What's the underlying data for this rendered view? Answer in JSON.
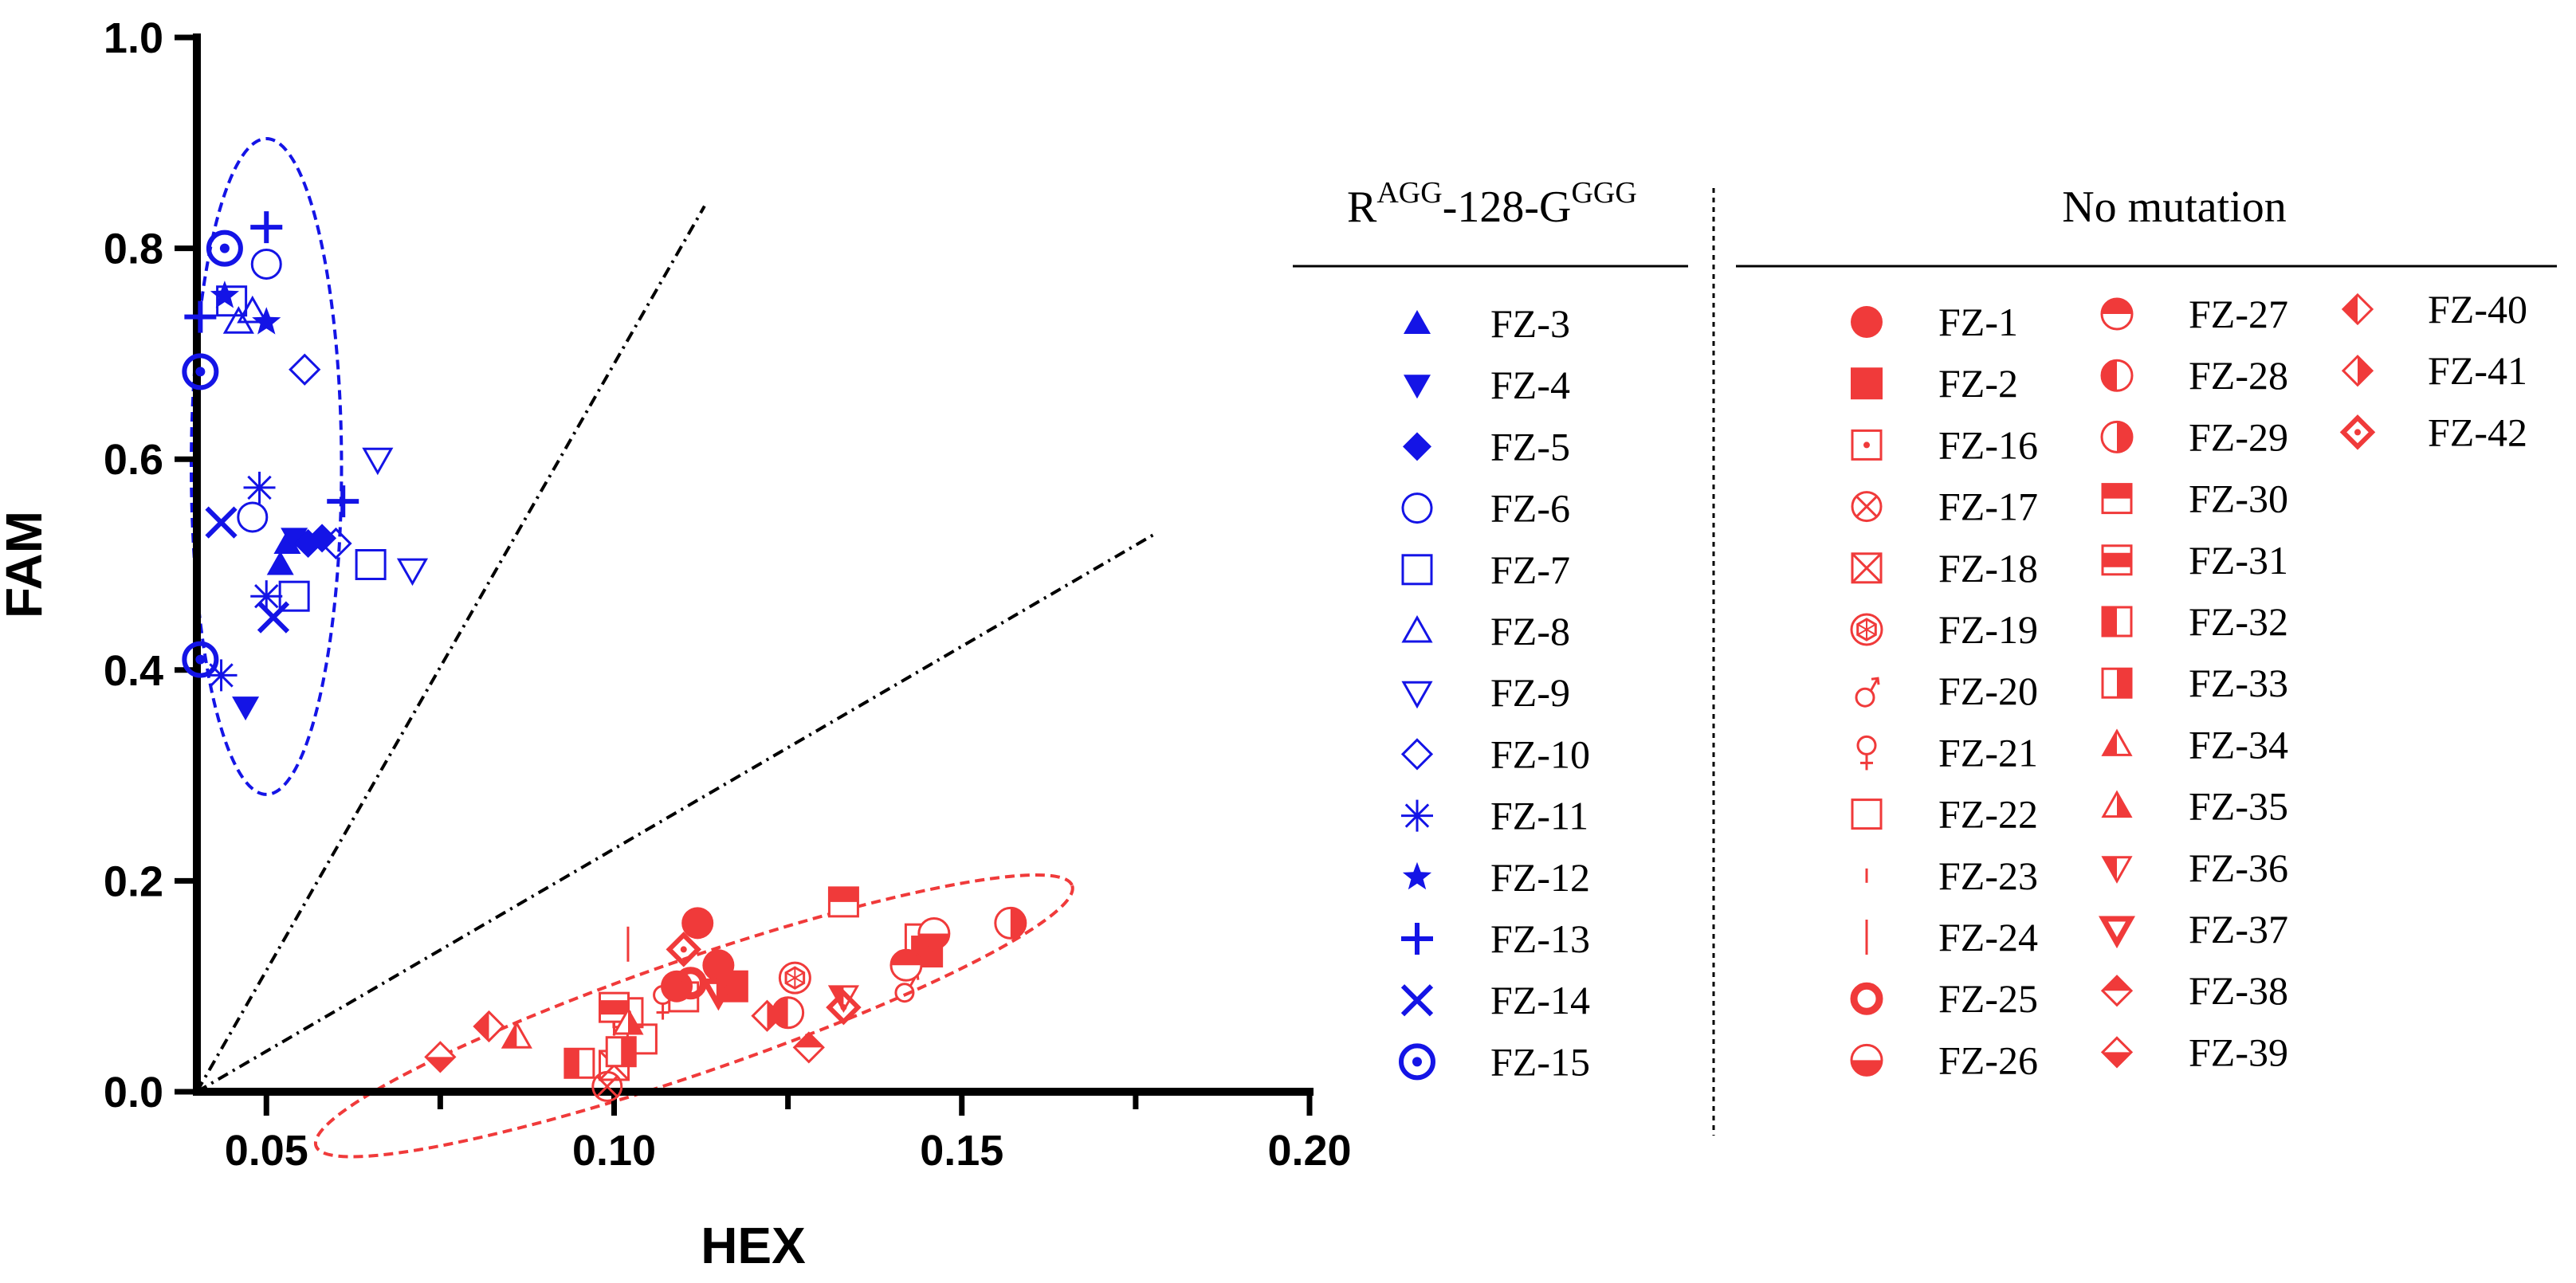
{
  "chart_data": {
    "type": "scatter",
    "xlabel": "HEX",
    "ylabel": "FAM",
    "xlim": [
      0.04,
      0.2
    ],
    "ylim": [
      0.0,
      1.0
    ],
    "x_ticks": [
      0.05,
      0.1,
      0.15,
      0.2
    ],
    "x_tick_labels": [
      "0.05",
      "0.10",
      "0.15",
      "0.20"
    ],
    "y_ticks": [
      0.0,
      0.2,
      0.4,
      0.6,
      0.8,
      1.0
    ],
    "y_tick_labels": [
      "0.0",
      "0.2",
      "0.4",
      "0.6",
      "0.8",
      "1.0"
    ],
    "colors": {
      "mutant": "#1414e6",
      "normal": "#f03a3a"
    },
    "threshold_lines": [
      {
        "x": [
          0.04,
          0.113
        ],
        "y": [
          0.0,
          0.84
        ]
      },
      {
        "x": [
          0.04,
          0.178
        ],
        "y": [
          0.0,
          0.53
        ]
      }
    ],
    "clusters": [
      {
        "group": "mutant",
        "center": [
          0.05,
          0.593
        ],
        "x_semi": 0.0108,
        "y_semi": 0.311
      },
      {
        "group": "normal",
        "center": [
          0.1115,
          0.072
        ],
        "x_semi": 0.0575,
        "y_semi": 0.054,
        "angle_deg": -19
      }
    ],
    "legend_groups": [
      {
        "title_main": "R",
        "title_sup1": "AGG",
        "title_mid": "-128-G",
        "title_sup2": "GGG",
        "color": "mutant",
        "entries": [
          {
            "label": "FZ-3",
            "marker": "tri-up-filled"
          },
          {
            "label": "FZ-4",
            "marker": "tri-down-filled"
          },
          {
            "label": "FZ-5",
            "marker": "diamond-filled"
          },
          {
            "label": "FZ-6",
            "marker": "circle-open"
          },
          {
            "label": "FZ-7",
            "marker": "square-open"
          },
          {
            "label": "FZ-8",
            "marker": "tri-up-open"
          },
          {
            "label": "FZ-9",
            "marker": "tri-down-open"
          },
          {
            "label": "FZ-10",
            "marker": "diamond-open"
          },
          {
            "label": "FZ-11",
            "marker": "asterisk"
          },
          {
            "label": "FZ-12",
            "marker": "star-filled"
          },
          {
            "label": "FZ-13",
            "marker": "plus"
          },
          {
            "label": "FZ-14",
            "marker": "cross"
          },
          {
            "label": "FZ-15",
            "marker": "bullseye"
          }
        ]
      },
      {
        "title": "No mutation",
        "color": "normal",
        "entries": [
          {
            "label": "FZ-1",
            "marker": "circle-filled"
          },
          {
            "label": "FZ-2",
            "marker": "square-filled"
          },
          {
            "label": "FZ-16",
            "marker": "square-dot"
          },
          {
            "label": "FZ-17",
            "marker": "circle-x"
          },
          {
            "label": "FZ-18",
            "marker": "square-x"
          },
          {
            "label": "FZ-19",
            "marker": "circle-hex"
          },
          {
            "label": "FZ-20",
            "marker": "male"
          },
          {
            "label": "FZ-21",
            "marker": "female"
          },
          {
            "label": "FZ-22",
            "marker": "square-open"
          },
          {
            "label": "FZ-23",
            "marker": "short-bar"
          },
          {
            "label": "FZ-24",
            "marker": "long-bar"
          },
          {
            "label": "FZ-25",
            "marker": "ring"
          },
          {
            "label": "FZ-26",
            "marker": "circle-half-bottom"
          },
          {
            "label": "FZ-27",
            "marker": "circle-half-top"
          },
          {
            "label": "FZ-28",
            "marker": "circle-half-left"
          },
          {
            "label": "FZ-29",
            "marker": "circle-half-right"
          },
          {
            "label": "FZ-30",
            "marker": "square-half-top"
          },
          {
            "label": "FZ-31",
            "marker": "square-half-mid"
          },
          {
            "label": "FZ-32",
            "marker": "square-half-left"
          },
          {
            "label": "FZ-33",
            "marker": "square-half-right"
          },
          {
            "label": "FZ-34",
            "marker": "tri-up-half-left"
          },
          {
            "label": "FZ-35",
            "marker": "tri-up-half-right"
          },
          {
            "label": "FZ-36",
            "marker": "tri-down-half-left"
          },
          {
            "label": "FZ-37",
            "marker": "tri-down-thick"
          },
          {
            "label": "FZ-38",
            "marker": "diamond-half-top"
          },
          {
            "label": "FZ-39",
            "marker": "diamond-half-bottom"
          },
          {
            "label": "FZ-40",
            "marker": "diamond-half-left"
          },
          {
            "label": "FZ-41",
            "marker": "diamond-half-right"
          },
          {
            "label": "FZ-42",
            "marker": "diamond-dot"
          }
        ]
      }
    ],
    "series": [
      {
        "name": "FZ-3",
        "marker": "tri-up-filled",
        "color": "mutant",
        "points": [
          [
            0.052,
            0.5
          ],
          [
            0.053,
            0.52
          ]
        ]
      },
      {
        "name": "FZ-4",
        "marker": "tri-down-filled",
        "color": "mutant",
        "points": [
          [
            0.047,
            0.365
          ],
          [
            0.054,
            0.525
          ]
        ]
      },
      {
        "name": "FZ-5",
        "marker": "diamond-filled",
        "color": "mutant",
        "points": [
          [
            0.056,
            0.52
          ],
          [
            0.058,
            0.525
          ]
        ]
      },
      {
        "name": "FZ-6",
        "marker": "circle-open",
        "color": "mutant",
        "points": [
          [
            0.05,
            0.785
          ],
          [
            0.048,
            0.545
          ]
        ]
      },
      {
        "name": "FZ-7",
        "marker": "square-open",
        "color": "mutant",
        "points": [
          [
            0.045,
            0.75
          ],
          [
            0.054,
            0.47
          ],
          [
            0.065,
            0.5
          ]
        ]
      },
      {
        "name": "FZ-8",
        "marker": "tri-up-open",
        "color": "mutant",
        "points": [
          [
            0.046,
            0.73
          ],
          [
            0.048,
            0.74
          ]
        ]
      },
      {
        "name": "FZ-9",
        "marker": "tri-down-open",
        "color": "mutant",
        "points": [
          [
            0.066,
            0.6
          ],
          [
            0.071,
            0.495
          ]
        ]
      },
      {
        "name": "FZ-10",
        "marker": "diamond-open",
        "color": "mutant",
        "points": [
          [
            0.0555,
            0.685
          ],
          [
            0.06,
            0.52
          ]
        ]
      },
      {
        "name": "FZ-11",
        "marker": "asterisk",
        "color": "mutant",
        "points": [
          [
            0.049,
            0.573
          ],
          [
            0.0435,
            0.395
          ],
          [
            0.05,
            0.47
          ]
        ]
      },
      {
        "name": "FZ-12",
        "marker": "star-filled",
        "color": "mutant",
        "points": [
          [
            0.044,
            0.755
          ],
          [
            0.05,
            0.73
          ]
        ]
      },
      {
        "name": "FZ-13",
        "marker": "plus",
        "color": "mutant",
        "points": [
          [
            0.05,
            0.82
          ],
          [
            0.0405,
            0.735
          ],
          [
            0.061,
            0.56
          ]
        ]
      },
      {
        "name": "FZ-14",
        "marker": "cross",
        "color": "mutant",
        "points": [
          [
            0.0435,
            0.54
          ],
          [
            0.051,
            0.45
          ]
        ]
      },
      {
        "name": "FZ-15",
        "marker": "bullseye",
        "color": "mutant",
        "points": [
          [
            0.044,
            0.8
          ],
          [
            0.0405,
            0.683
          ],
          [
            0.0405,
            0.41
          ]
        ]
      },
      {
        "name": "FZ-1",
        "marker": "circle-filled",
        "color": "normal",
        "points": [
          [
            0.112,
            0.16
          ],
          [
            0.115,
            0.12
          ],
          [
            0.109,
            0.1
          ]
        ]
      },
      {
        "name": "FZ-2",
        "marker": "square-filled",
        "color": "normal",
        "points": [
          [
            0.117,
            0.1
          ],
          [
            0.145,
            0.133
          ]
        ]
      },
      {
        "name": "FZ-16",
        "marker": "square-dot",
        "color": "normal",
        "points": [
          [
            0.102,
            0.075
          ]
        ]
      },
      {
        "name": "FZ-17",
        "marker": "circle-x",
        "color": "normal",
        "points": [
          [
            0.099,
            0.005
          ]
        ]
      },
      {
        "name": "FZ-18",
        "marker": "square-x",
        "color": "normal",
        "points": [
          [
            0.1,
            0.025
          ]
        ]
      },
      {
        "name": "FZ-19",
        "marker": "circle-hex",
        "color": "normal",
        "points": [
          [
            0.126,
            0.108
          ]
        ]
      },
      {
        "name": "FZ-20",
        "marker": "male",
        "color": "normal",
        "points": [
          [
            0.142,
            0.1
          ]
        ]
      },
      {
        "name": "FZ-21",
        "marker": "female",
        "color": "normal",
        "points": [
          [
            0.107,
            0.085
          ]
        ]
      },
      {
        "name": "FZ-22",
        "marker": "square-open",
        "color": "normal",
        "points": [
          [
            0.104,
            0.05
          ],
          [
            0.11,
            0.09
          ],
          [
            0.144,
            0.145
          ]
        ]
      },
      {
        "name": "FZ-23",
        "marker": "short-bar",
        "color": "normal",
        "points": [
          [
            0.1,
            0.06
          ]
        ]
      },
      {
        "name": "FZ-24",
        "marker": "long-bar",
        "color": "normal",
        "points": [
          [
            0.102,
            0.14
          ]
        ]
      },
      {
        "name": "FZ-25",
        "marker": "ring",
        "color": "normal",
        "points": [
          [
            0.111,
            0.103
          ]
        ]
      },
      {
        "name": "FZ-26",
        "marker": "circle-half-bottom",
        "color": "normal",
        "points": [
          [
            0.146,
            0.15
          ]
        ]
      },
      {
        "name": "FZ-27",
        "marker": "circle-half-top",
        "color": "normal",
        "points": [
          [
            0.142,
            0.12
          ]
        ]
      },
      {
        "name": "FZ-28",
        "marker": "circle-half-left",
        "color": "normal",
        "points": [
          [
            0.125,
            0.075
          ]
        ]
      },
      {
        "name": "FZ-29",
        "marker": "circle-half-right",
        "color": "normal",
        "points": [
          [
            0.157,
            0.16
          ]
        ]
      },
      {
        "name": "FZ-30",
        "marker": "square-half-top",
        "color": "normal",
        "points": [
          [
            0.133,
            0.18
          ]
        ]
      },
      {
        "name": "FZ-31",
        "marker": "square-half-mid",
        "color": "normal",
        "points": [
          [
            0.1,
            0.08
          ]
        ]
      },
      {
        "name": "FZ-32",
        "marker": "square-half-left",
        "color": "normal",
        "points": [
          [
            0.095,
            0.027
          ]
        ]
      },
      {
        "name": "FZ-33",
        "marker": "square-half-right",
        "color": "normal",
        "points": [
          [
            0.101,
            0.038
          ]
        ]
      },
      {
        "name": "FZ-34",
        "marker": "tri-up-half-left",
        "color": "normal",
        "points": [
          [
            0.086,
            0.052
          ]
        ]
      },
      {
        "name": "FZ-35",
        "marker": "tri-up-half-right",
        "color": "normal",
        "points": [
          [
            0.102,
            0.065
          ]
        ]
      },
      {
        "name": "FZ-36",
        "marker": "tri-down-half-left",
        "color": "normal",
        "points": [
          [
            0.133,
            0.09
          ]
        ]
      },
      {
        "name": "FZ-37",
        "marker": "tri-down-thick",
        "color": "normal",
        "points": [
          [
            0.115,
            0.095
          ]
        ]
      },
      {
        "name": "FZ-38",
        "marker": "diamond-half-top",
        "color": "normal",
        "points": [
          [
            0.128,
            0.042
          ]
        ]
      },
      {
        "name": "FZ-39",
        "marker": "diamond-half-bottom",
        "color": "normal",
        "points": [
          [
            0.075,
            0.033
          ]
        ]
      },
      {
        "name": "FZ-40",
        "marker": "diamond-half-left",
        "color": "normal",
        "points": [
          [
            0.082,
            0.062
          ]
        ]
      },
      {
        "name": "FZ-41",
        "marker": "diamond-half-right",
        "color": "normal",
        "points": [
          [
            0.122,
            0.072
          ]
        ]
      },
      {
        "name": "FZ-42",
        "marker": "diamond-dot",
        "color": "normal",
        "points": [
          [
            0.133,
            0.08
          ],
          [
            0.11,
            0.135
          ]
        ]
      }
    ]
  }
}
